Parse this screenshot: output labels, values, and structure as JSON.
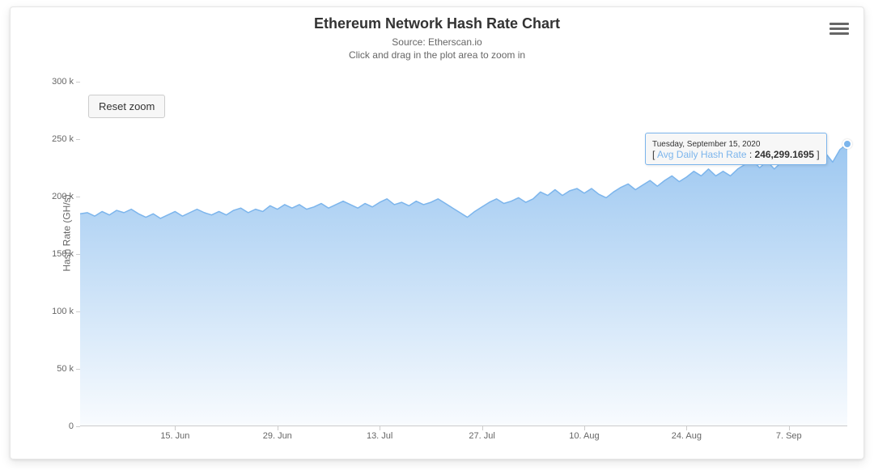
{
  "title": "Ethereum Network Hash Rate Chart",
  "subtitle_line1": "Source: Etherscan.io",
  "subtitle_line2": "Click and drag in the plot area to zoom in",
  "reset_button_label": "Reset zoom",
  "y_axis_title": "Hash Rate (GH/s)",
  "tooltip": {
    "date": "Tuesday, September 15, 2020",
    "series_label": "Avg Daily Hash Rate",
    "value": "246,299.1695",
    "separator": " : "
  },
  "chart": {
    "type": "area",
    "background_color": "#ffffff",
    "line_color": "#7cb5ec",
    "fill_gradient_top": "rgba(124,181,236,0.75)",
    "fill_gradient_bottom": "rgba(124,181,236,0.05)",
    "line_width": 1.5,
    "title_fontsize": 18,
    "subtitle_fontsize": 12,
    "tick_fontsize": 11,
    "axis_label_color": "#666666",
    "tick_color": "#cccccc",
    "axis_title_fontsize": 12,
    "y": {
      "min": 0,
      "max": 300,
      "tick_step": 50,
      "tick_suffix": " k",
      "ticks": [
        0,
        50,
        100,
        150,
        200,
        250,
        300
      ]
    },
    "x": {
      "ticks": [
        {
          "i": 13,
          "label": "15. Jun"
        },
        {
          "i": 27,
          "label": "29. Jun"
        },
        {
          "i": 41,
          "label": "13. Jul"
        },
        {
          "i": 55,
          "label": "27. Jul"
        },
        {
          "i": 69,
          "label": "10. Aug"
        },
        {
          "i": 83,
          "label": "24. Aug"
        },
        {
          "i": 97,
          "label": "7. Sep"
        }
      ],
      "n_points": 106
    },
    "series": {
      "name": "Avg Daily Hash Rate",
      "unit": "k GH/s",
      "values": [
        185,
        186,
        183,
        187,
        184,
        188,
        186,
        189,
        185,
        182,
        185,
        181,
        184,
        187,
        183,
        186,
        189,
        186,
        184,
        187,
        184,
        188,
        190,
        186,
        189,
        187,
        192,
        189,
        193,
        190,
        193,
        189,
        191,
        194,
        190,
        193,
        196,
        193,
        190,
        194,
        191,
        195,
        198,
        193,
        195,
        192,
        196,
        193,
        195,
        198,
        194,
        190,
        186,
        182,
        187,
        191,
        195,
        198,
        194,
        196,
        199,
        195,
        198,
        204,
        201,
        206,
        201,
        205,
        207,
        203,
        207,
        202,
        199,
        204,
        208,
        211,
        206,
        210,
        214,
        209,
        214,
        218,
        213,
        217,
        222,
        218,
        224,
        218,
        222,
        218,
        224,
        228,
        232,
        225,
        231,
        224,
        230,
        236,
        228,
        234,
        239,
        232,
        238,
        230,
        241,
        246
      ]
    }
  }
}
